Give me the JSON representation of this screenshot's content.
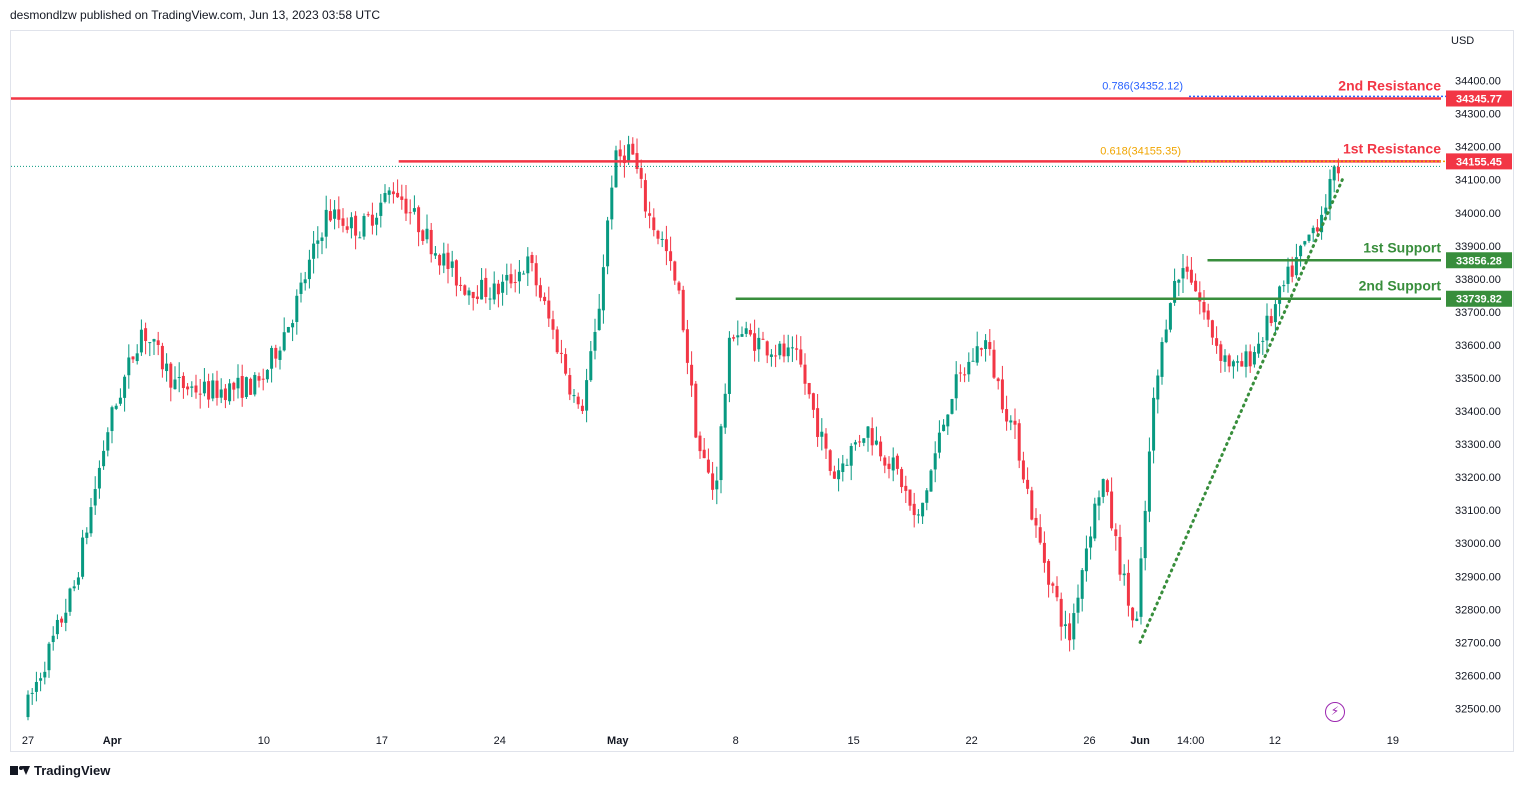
{
  "header": {
    "published": "desmondlzw published on TradingView.com, Jun 13, 2023 03:58 UTC"
  },
  "footer": {
    "brand": "TradingView"
  },
  "icons": {
    "logo": "tradingview-logo-icon",
    "bolt": "lightning-icon"
  },
  "colors": {
    "up": "#089981",
    "down": "#f23645",
    "resistance": "#f23645",
    "support": "#388e3c",
    "fib618": "#f0a500",
    "fib786": "#2962ff",
    "trend": "#388e3c"
  },
  "chart_data": {
    "type": "candlestick",
    "currency": "USD",
    "ylim": [
      32450,
      34550
    ],
    "y_ticks": [
      32500,
      32600,
      32700,
      32800,
      32900,
      33000,
      33100,
      33200,
      33300,
      33400,
      33500,
      33600,
      33700,
      33800,
      33900,
      34000,
      34100,
      34200,
      34300,
      34400
    ],
    "x_ticks": [
      "27",
      "Apr",
      "10",
      "17",
      "24",
      "May",
      "8",
      "15",
      "22",
      "26",
      "Jun",
      "14:00",
      "12",
      "19"
    ],
    "levels": [
      {
        "name": "2nd Resistance",
        "value": 34345.77,
        "label": "34345.77",
        "kind": "resistance"
      },
      {
        "name": "1st Resistance",
        "value": 34155.45,
        "label": "34155.45",
        "kind": "resistance"
      },
      {
        "name": "1st Support",
        "value": 33856.28,
        "label": "33856.28",
        "kind": "support"
      },
      {
        "name": "2nd Support",
        "value": 33739.82,
        "label": "33739.82",
        "kind": "support"
      }
    ],
    "fib_levels": [
      {
        "label": "0.786(34352.12)",
        "value": 34352.12
      },
      {
        "label": "0.618(34155.35)",
        "value": 34155.35
      }
    ],
    "trendline": {
      "from": {
        "date": "2023-06-01",
        "value": 32700
      },
      "to": {
        "date": "2023-06-13",
        "value": 34100
      }
    },
    "price_path": [
      [
        "2023-03-27",
        32480
      ],
      [
        "2023-03-30",
        32870
      ],
      [
        "2023-04-01",
        33350
      ],
      [
        "2023-04-03",
        33650
      ],
      [
        "2023-04-05",
        33480
      ],
      [
        "2023-04-07",
        33460
      ],
      [
        "2023-04-10",
        33480
      ],
      [
        "2023-04-12",
        33700
      ],
      [
        "2023-04-14",
        34000
      ],
      [
        "2023-04-16",
        33950
      ],
      [
        "2023-04-18",
        34080
      ],
      [
        "2023-04-20",
        33920
      ],
      [
        "2023-04-22",
        33780
      ],
      [
        "2023-04-24",
        33760
      ],
      [
        "2023-04-26",
        33850
      ],
      [
        "2023-04-28",
        33550
      ],
      [
        "2023-04-29",
        33380
      ],
      [
        "2023-04-30",
        33650
      ],
      [
        "2023-05-01",
        34150
      ],
      [
        "2023-05-02",
        34200
      ],
      [
        "2023-05-03",
        34000
      ],
      [
        "2023-05-04",
        33900
      ],
      [
        "2023-05-05",
        33720
      ],
      [
        "2023-05-06",
        33300
      ],
      [
        "2023-05-07",
        33150
      ],
      [
        "2023-05-08",
        33650
      ],
      [
        "2023-05-10",
        33600
      ],
      [
        "2023-05-12",
        33550
      ],
      [
        "2023-05-14",
        33200
      ],
      [
        "2023-05-16",
        33350
      ],
      [
        "2023-05-18",
        33200
      ],
      [
        "2023-05-19",
        33050
      ],
      [
        "2023-05-21",
        33450
      ],
      [
        "2023-05-23",
        33620
      ],
      [
        "2023-05-24",
        33450
      ],
      [
        "2023-05-25",
        33300
      ],
      [
        "2023-05-26",
        33050
      ],
      [
        "2023-05-28",
        32700
      ],
      [
        "2023-05-29",
        32980
      ],
      [
        "2023-05-30",
        33200
      ],
      [
        "2023-05-31",
        32950
      ],
      [
        "2023-06-01",
        32720
      ],
      [
        "2023-06-02",
        33400
      ],
      [
        "2023-06-03",
        33750
      ],
      [
        "2023-06-04",
        33850
      ],
      [
        "2023-06-05",
        33700
      ],
      [
        "2023-06-06",
        33580
      ],
      [
        "2023-06-07",
        33520
      ],
      [
        "2023-06-08",
        33580
      ],
      [
        "2023-06-09",
        33680
      ],
      [
        "2023-06-10",
        33800
      ],
      [
        "2023-06-11",
        33900
      ],
      [
        "2023-06-12",
        34000
      ],
      [
        "2023-06-13",
        34140
      ]
    ],
    "title": "",
    "xlabel": "",
    "ylabel": ""
  }
}
